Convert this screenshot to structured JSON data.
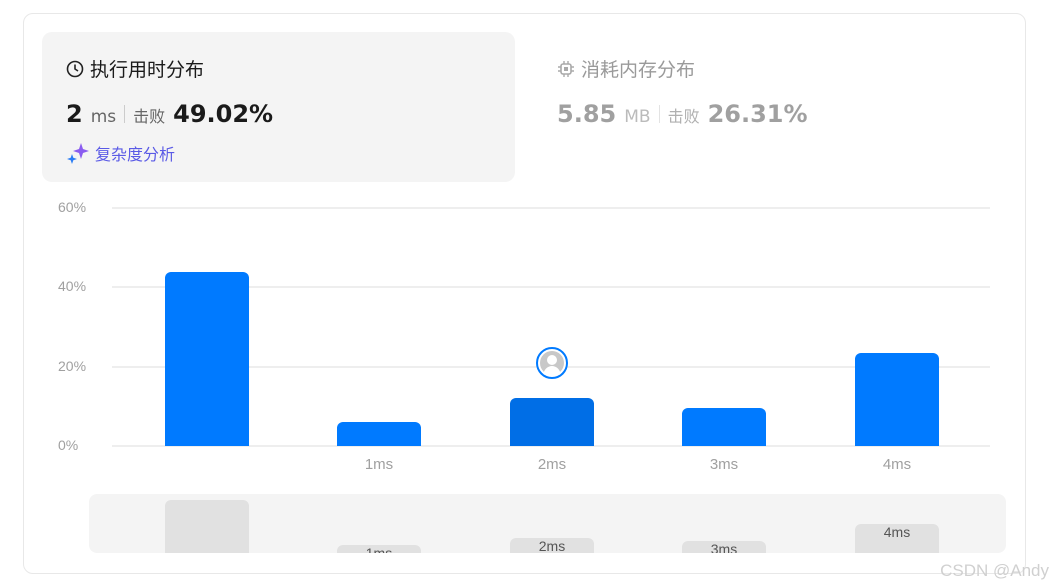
{
  "runtime": {
    "title": "执行用时分布",
    "value": "2",
    "unit": "ms",
    "beats_label": "击败",
    "beats": "49.02%",
    "analysis_link": "复杂度分析",
    "icon": "clock-icon"
  },
  "memory": {
    "title": "消耗内存分布",
    "value": "5.85",
    "unit": "MB",
    "beats_label": "击败",
    "beats": "26.31%",
    "icon": "chip-icon"
  },
  "colors": {
    "bar": "#007aff",
    "selected_bar": "#006ee6",
    "panel": "#f4f4f4"
  },
  "chart_data": {
    "type": "bar",
    "categories": [
      "",
      "1ms",
      "2ms",
      "3ms",
      "4ms"
    ],
    "values": [
      43.8,
      6.0,
      12.1,
      9.6,
      23.4
    ],
    "ylim": [
      0,
      60
    ],
    "yticks": [
      "0%",
      "20%",
      "40%",
      "60%"
    ],
    "grid": true,
    "selected_index": 2,
    "selected_marker": "avatar"
  },
  "watermark": "CSDN @Andy"
}
